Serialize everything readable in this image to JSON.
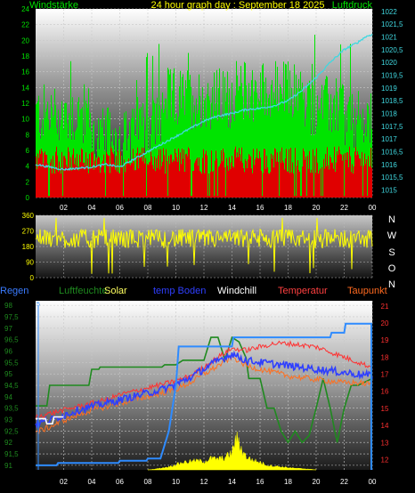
{
  "chart_data": [
    {
      "type": "line",
      "title": "24 hour graph day : September 18 2025",
      "left_label": "Windstärke",
      "right_label": "Luftdruck",
      "x_ticks": [
        "02",
        "04",
        "06",
        "08",
        "10",
        "12",
        "14",
        "16",
        "18",
        "20",
        "22",
        "00"
      ],
      "left_ticks": [
        "0",
        "2",
        "4",
        "6",
        "8",
        "10",
        "12",
        "14",
        "16",
        "18",
        "20",
        "22",
        "24"
      ],
      "right_ticks": [
        "1015",
        "1015,5",
        "1016",
        "1016,5",
        "1017",
        "1017,5",
        "1018",
        "1018,5",
        "1019",
        "1019,5",
        "1020",
        "1020,5",
        "1021",
        "1021,5",
        "1022"
      ],
      "ylim_left": [
        0,
        24
      ],
      "ylim_right": [
        1014.7,
        1022.1
      ],
      "xlim": [
        0,
        24
      ],
      "grid": true,
      "series": [
        {
          "key": "gust",
          "color": "#00e400"
        },
        {
          "key": "wind",
          "color": "#e00000"
        },
        {
          "key": "pressure",
          "color": "#40d8e0",
          "x": [
            0,
            1,
            2,
            3,
            4,
            5,
            6,
            7,
            8,
            9,
            10,
            11,
            12,
            13,
            14,
            15,
            16,
            17,
            18,
            19,
            20,
            21,
            22,
            23,
            23.5,
            24
          ],
          "values": [
            1016.0,
            1015.9,
            1015.8,
            1015.85,
            1015.9,
            1016.0,
            1015.9,
            1016.2,
            1016.5,
            1016.8,
            1017.1,
            1017.4,
            1017.7,
            1017.9,
            1018.0,
            1018.15,
            1018.2,
            1018.3,
            1018.5,
            1018.9,
            1019.4,
            1020.0,
            1020.5,
            1020.8,
            1021.0,
            1021.1
          ]
        }
      ]
    },
    {
      "type": "line",
      "left_ticks": [
        "0",
        "90",
        "180",
        "270",
        "360"
      ],
      "right_letters": [
        "N",
        "W",
        "S",
        "O",
        "N"
      ],
      "ylim": [
        0,
        360
      ],
      "xlim": [
        0,
        24
      ],
      "series": [
        {
          "key": "direction",
          "color": "#ffff00"
        }
      ]
    },
    {
      "type": "line",
      "header_labels": [
        {
          "text": "Regen",
          "color": "#3a7bff"
        },
        {
          "text": "Luftfeuchte",
          "color": "#1f8a1f"
        },
        {
          "text": "Solar",
          "color": "#ffff60"
        },
        {
          "text": "temp Boden",
          "color": "#2f3fff"
        },
        {
          "text": "Windchill",
          "color": "#ffffff"
        },
        {
          "text": "Temperatur",
          "color": "#ff4040"
        },
        {
          "text": "Taupunkt",
          "color": "#ff6a20"
        }
      ],
      "x_ticks": [
        "02",
        "04",
        "06",
        "08",
        "10",
        "12",
        "14",
        "16",
        "18",
        "20",
        "22",
        "00"
      ],
      "left_ticks": [
        "91",
        "91,5",
        "92",
        "92,5",
        "93",
        "93,5",
        "94",
        "94,5",
        "95",
        "95,5",
        "96",
        "96,5",
        "97",
        "97,5",
        "98"
      ],
      "right_ticks": [
        "12",
        "13",
        "14",
        "15",
        "16",
        "17",
        "18",
        "19",
        "20",
        "21"
      ],
      "left_axis_marker": "5",
      "ylim_left": [
        90.8,
        98.2
      ],
      "ylim_right": [
        11.4,
        21.3
      ],
      "xlim": [
        0,
        24
      ],
      "series": [
        {
          "key": "rain",
          "color": "#2e8bff",
          "x": [
            0,
            1.5,
            1.6,
            5.9,
            6,
            7.9,
            8,
            8.9,
            9,
            9.5,
            10,
            10.2,
            14,
            14.1,
            21,
            21.1,
            22,
            22.1,
            24
          ],
          "values": [
            91.0,
            91.0,
            91.1,
            91.1,
            91.2,
            91.2,
            91.3,
            91.3,
            91.5,
            92.5,
            94.5,
            96.2,
            96.2,
            96.6,
            96.6,
            96.8,
            96.8,
            97.2,
            97.2
          ]
        },
        {
          "key": "humidity",
          "color": "#1f8a1f",
          "x": [
            0,
            0.8,
            1,
            3.8,
            4,
            4.5,
            4.6,
            9,
            9.2,
            10,
            10.5,
            11,
            12,
            12.5,
            13,
            13.5,
            14,
            14.5,
            15,
            15.2,
            16,
            16.5,
            17,
            17.5,
            18,
            18.5,
            19,
            19.5,
            20,
            20.5,
            21,
            21.5,
            22,
            22.5,
            23,
            24
          ],
          "values": [
            93.6,
            93.6,
            94.5,
            94.5,
            95.2,
            95.2,
            95.3,
            95.3,
            95.4,
            95.4,
            95.6,
            95.6,
            95.6,
            96.6,
            96.6,
            95.6,
            96.6,
            96.4,
            95.7,
            94.8,
            94.8,
            93.5,
            93.5,
            92.5,
            92.0,
            92.5,
            92.0,
            92.3,
            93.5,
            94.8,
            93.5,
            92.0,
            93.5,
            94.5,
            94.5,
            94.8
          ]
        },
        {
          "key": "solar",
          "color": "#ffff00",
          "x": [
            8,
            8.5,
            9,
            9.5,
            10,
            10.5,
            11,
            11.5,
            12,
            12.5,
            13,
            13.5,
            14,
            14.3,
            14.6,
            15,
            15.5,
            16,
            16.5,
            17,
            17.5,
            18,
            18.5,
            19,
            19.5,
            20
          ],
          "values": [
            0,
            0.02,
            0.05,
            0.08,
            0.14,
            0.2,
            0.22,
            0.24,
            0.22,
            0.3,
            0.28,
            0.32,
            0.45,
            0.85,
            0.6,
            0.35,
            0.25,
            0.2,
            0.12,
            0.1,
            0.08,
            0.06,
            0.04,
            0.03,
            0.02,
            0
          ]
        },
        {
          "key": "soil_temp",
          "color": "#2f3fff",
          "x": [
            0,
            1,
            2,
            3,
            4,
            5,
            6,
            7,
            8,
            9,
            10,
            11,
            12,
            13,
            14,
            14.5,
            15,
            16,
            17,
            18,
            19,
            20,
            21,
            22,
            23,
            24
          ],
          "values": [
            14.1,
            14.3,
            14.6,
            14.9,
            15.1,
            15.3,
            15.5,
            15.7,
            15.9,
            16.1,
            16.4,
            16.8,
            17.3,
            17.8,
            18.2,
            18.0,
            17.8,
            17.7,
            17.6,
            17.5,
            17.4,
            17.3,
            17.2,
            17.1,
            17.0,
            16.9
          ]
        },
        {
          "key": "windchill",
          "color": "#ffffff",
          "x": [
            0,
            0.7,
            0.8,
            1.2,
            1.3,
            2
          ],
          "values": [
            14.4,
            14.4,
            14.1,
            14.1,
            14.5,
            14.5
          ]
        },
        {
          "key": "temperature",
          "color": "#ff3030",
          "x": [
            0,
            1,
            2,
            3,
            4,
            5,
            6,
            7,
            8,
            9,
            10,
            11,
            12,
            13,
            14,
            15,
            16,
            17,
            18,
            19,
            20,
            21,
            22,
            23,
            24
          ],
          "values": [
            14.5,
            14.7,
            14.9,
            15.1,
            15.3,
            15.5,
            15.8,
            16.0,
            16.2,
            16.4,
            16.6,
            16.9,
            17.4,
            18.0,
            18.5,
            18.4,
            18.6,
            18.8,
            18.8,
            18.7,
            18.6,
            18.3,
            18.0,
            17.7,
            17.4
          ]
        },
        {
          "key": "dewpoint",
          "color": "#ff7020",
          "x": [
            0,
            1,
            2,
            3,
            4,
            5,
            6,
            7,
            8,
            9,
            10,
            11,
            12,
            13,
            14,
            14.5,
            15,
            16,
            17,
            18,
            19,
            20,
            21,
            22,
            23,
            24
          ],
          "values": [
            13.6,
            13.9,
            14.3,
            14.6,
            14.9,
            15.1,
            15.3,
            15.5,
            15.7,
            15.9,
            16.1,
            16.5,
            17.0,
            17.5,
            18.0,
            17.8,
            17.5,
            17.3,
            17.1,
            16.9,
            16.8,
            16.7,
            16.6,
            16.5,
            16.5,
            16.4
          ]
        }
      ]
    }
  ]
}
